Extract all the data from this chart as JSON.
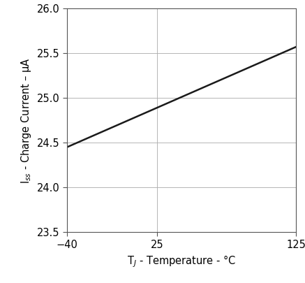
{
  "x_data": [
    -40,
    125
  ],
  "y_data": [
    24.45,
    25.57
  ],
  "xlim": [
    -40,
    125
  ],
  "ylim": [
    23.5,
    26.0
  ],
  "xticks": [
    -40,
    25,
    125
  ],
  "yticks": [
    23.5,
    24.0,
    24.5,
    25.0,
    25.5,
    26.0
  ],
  "xlabel": "T$_J$ - Temperature - °C",
  "ylabel": "I$_{ss}$ - Charge Current – μA",
  "line_color": "#1a1a1a",
  "line_width": 1.8,
  "background_color": "#ffffff",
  "grid_color": "#aaaaaa",
  "font_size": 10.5,
  "tick_labelsize": 10.5
}
